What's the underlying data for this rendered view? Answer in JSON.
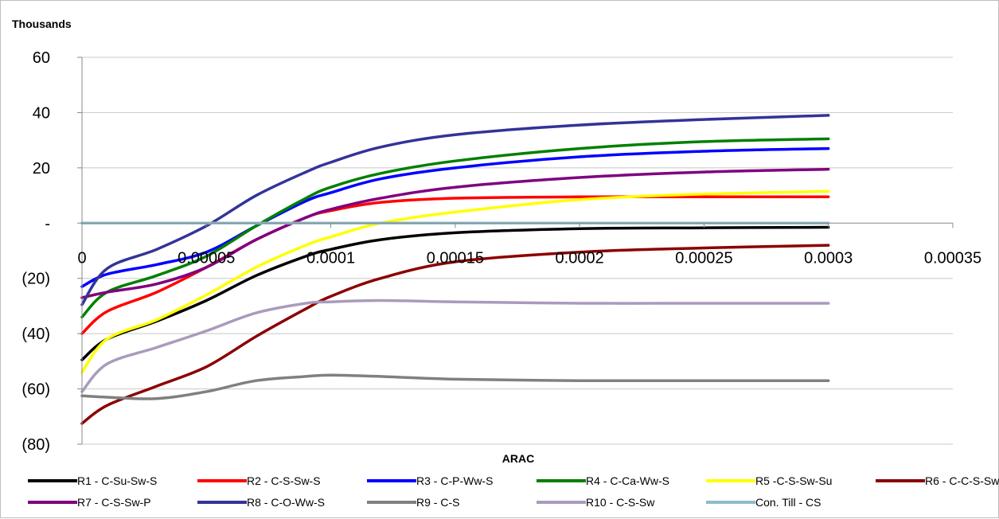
{
  "chart_data": {
    "type": "line",
    "title": "",
    "units_label": "Thousands",
    "xlabel": "ARAC",
    "ylabel": "",
    "xlim": [
      0,
      0.00035
    ],
    "ylim": [
      -80,
      60
    ],
    "x_ticks": [
      0,
      5e-05,
      0.0001,
      0.00015,
      0.0002,
      0.00025,
      0.0003,
      0.00035
    ],
    "x_tick_labels": [
      "0",
      "0.00005",
      "0.0001",
      "0.00015",
      "0.0002",
      "0.00025",
      "0.0003",
      "0.00035"
    ],
    "y_ticks": [
      60,
      40,
      20,
      0,
      -20,
      -40,
      -60,
      -80
    ],
    "y_tick_labels": [
      "60",
      "40",
      "20",
      "-",
      "(20)",
      "(40)",
      "(60)",
      "(80)"
    ],
    "grid": true,
    "legend_position": "bottom",
    "x": [
      0,
      1e-05,
      3e-05,
      5e-05,
      7e-05,
      9e-05,
      0.0001,
      0.00012,
      0.00015,
      0.0002,
      0.00025,
      0.0003
    ],
    "series": [
      {
        "name": "R1 - C-Su-Sw-S",
        "color": "#000000",
        "values": [
          -49.5,
          -42,
          -35.5,
          -28,
          -19,
          -12,
          -9.5,
          -6,
          -3.5,
          -2,
          -1.7,
          -1.5
        ]
      },
      {
        "name": "R2 - C-S-Sw-S",
        "color": "#ff0000",
        "values": [
          -40,
          -32,
          -25,
          -16,
          -6,
          2,
          4.5,
          7.5,
          9,
          9.5,
          9.5,
          9.5
        ]
      },
      {
        "name": "R3 - C-P-Ww-S",
        "color": "#0000ff",
        "values": [
          -23,
          -18.5,
          -15,
          -10.5,
          -1,
          8,
          11,
          16,
          20,
          24,
          26,
          27
        ]
      },
      {
        "name": "R4 - C-Ca-Ww-S",
        "color": "#008000",
        "values": [
          -34,
          -25,
          -19,
          -12,
          -1,
          9,
          13,
          18,
          22.5,
          27,
          29.5,
          30.5
        ]
      },
      {
        "name": "R5 -C-S-Sw-Su",
        "color": "#ffff00",
        "values": [
          -54,
          -42,
          -35,
          -26,
          -16,
          -8,
          -5,
          0,
          4,
          8.5,
          10.5,
          11.5
        ]
      },
      {
        "name": "R6 - C-C-S-Sw",
        "color": "#8b0000",
        "values": [
          -72.5,
          -66,
          -59,
          -52,
          -41,
          -31,
          -26.5,
          -20,
          -14,
          -10.5,
          -9,
          -8
        ]
      },
      {
        "name": "R7 - C-S-Sw-P",
        "color": "#800080",
        "values": [
          -27,
          -25,
          -22,
          -16,
          -6,
          2,
          5,
          9,
          13,
          16.5,
          18.5,
          19.5
        ]
      },
      {
        "name": "R8 - C-O-Ww-S",
        "color": "#333399",
        "values": [
          -29.5,
          -16.5,
          -9.5,
          -1,
          10,
          18.5,
          22,
          27.5,
          32,
          35.5,
          37.5,
          39
        ]
      },
      {
        "name": "R9 - C-S",
        "color": "#808080",
        "values": [
          -62.5,
          -63,
          -63.5,
          -61,
          -57,
          -55.5,
          -55,
          -55.5,
          -56.5,
          -57,
          -57,
          -57
        ]
      },
      {
        "name": "R10 - C-S-Sw",
        "color": "#a99bbd",
        "values": [
          -61,
          -51,
          -45,
          -39,
          -32.5,
          -29,
          -28.5,
          -28,
          -28.5,
          -29,
          -29,
          -29
        ]
      },
      {
        "name": "Con. Till - CS",
        "color": "#8fbccc",
        "values": [
          0,
          0,
          0,
          0,
          0,
          0,
          0,
          0,
          0,
          0,
          0,
          0
        ]
      }
    ]
  }
}
